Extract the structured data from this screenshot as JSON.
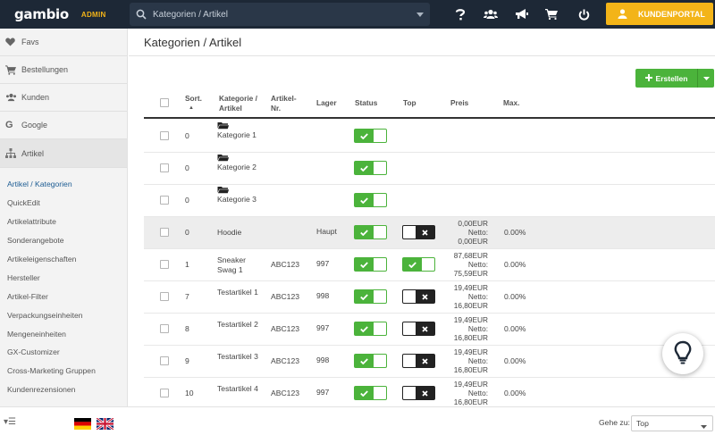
{
  "header": {
    "logo_name": "gambio",
    "logo_badge": "ADMIN",
    "search_value": "Kategorien / Artikel",
    "portal_label": "KUNDENPORTAL",
    "icons": [
      "help-icon",
      "users-icon",
      "megaphone-icon",
      "cart-icon",
      "power-icon"
    ]
  },
  "sidebar": {
    "main_items": [
      {
        "label": "Favs",
        "icon": "heart-icon"
      },
      {
        "label": "Bestellungen",
        "icon": "cart-icon"
      },
      {
        "label": "Kunden",
        "icon": "users-icon"
      },
      {
        "label": "Google",
        "icon": "google-icon"
      },
      {
        "label": "Artikel",
        "icon": "sitemap-icon"
      }
    ],
    "sub_items": [
      "Artikel / Kategorien",
      "QuickEdit",
      "Artikelattribute",
      "Sonderangebote",
      "Artikeleigenschaften",
      "Hersteller",
      "Artikel-Filter",
      "Verpackungseinheiten",
      "Mengeneinheiten",
      "GX-Customizer",
      "Cross-Marketing Gruppen",
      "Kundenrezensionen"
    ]
  },
  "main": {
    "title": "Kategorien / Artikel",
    "create_label": "Erstellen"
  },
  "table": {
    "headers": {
      "sort": "Sort.",
      "sort_arrow": "▲",
      "category": "Kategorie / Artikel",
      "artnr": "Artikel- Nr.",
      "stock": "Lager",
      "status": "Status",
      "top": "Top",
      "price": "Preis",
      "max": "Max."
    },
    "rows": [
      {
        "sort": "0",
        "name": "Kategorie 1",
        "folder": true,
        "artnr": "",
        "stock": "",
        "status": "on",
        "top": "",
        "price": "",
        "netto_label": "",
        "netto": "",
        "max": "",
        "highlight": false
      },
      {
        "sort": "0",
        "name": "Kategorie 2",
        "folder": true,
        "artnr": "",
        "stock": "",
        "status": "on",
        "top": "",
        "price": "",
        "netto_label": "",
        "netto": "",
        "max": "",
        "highlight": false
      },
      {
        "sort": "0",
        "name": "Kategorie 3",
        "folder": true,
        "artnr": "",
        "stock": "",
        "status": "on",
        "top": "",
        "price": "",
        "netto_label": "",
        "netto": "",
        "max": "",
        "highlight": false
      },
      {
        "sort": "0",
        "name": "Hoodie",
        "folder": false,
        "artnr": "",
        "stock": "Haupt",
        "status": "on",
        "top": "off",
        "price": "0,00EUR",
        "netto_label": "Netto:",
        "netto": "0,00EUR",
        "max": "0.00%",
        "highlight": true
      },
      {
        "sort": "1",
        "name": "Sneaker Swag 1",
        "folder": false,
        "artnr": "ABC123",
        "stock": "997",
        "status": "on",
        "top": "on",
        "price": "87,68EUR",
        "netto_label": "Netto:",
        "netto": "75,59EUR",
        "max": "0.00%",
        "highlight": false
      },
      {
        "sort": "7",
        "name": "Testartikel 1",
        "folder": false,
        "artnr": "ABC123",
        "stock": "998",
        "status": "on",
        "top": "off",
        "price": "19,49EUR",
        "netto_label": "Netto:",
        "netto": "16,80EUR",
        "max": "0.00%",
        "highlight": false
      },
      {
        "sort": "8",
        "name": "Testartikel 2",
        "folder": false,
        "artnr": "ABC123",
        "stock": "997",
        "status": "on",
        "top": "off",
        "price": "19,49EUR",
        "netto_label": "Netto:",
        "netto": "16,80EUR",
        "max": "0.00%",
        "highlight": false
      },
      {
        "sort": "9",
        "name": "Testartikel 3",
        "folder": false,
        "artnr": "ABC123",
        "stock": "998",
        "status": "on",
        "top": "off",
        "price": "19,49EUR",
        "netto_label": "Netto:",
        "netto": "16,80EUR",
        "max": "0.00%",
        "highlight": false
      },
      {
        "sort": "10",
        "name": "Testartikel 4",
        "folder": false,
        "artnr": "ABC123",
        "stock": "997",
        "status": "on",
        "top": "off",
        "price": "19,49EUR",
        "netto_label": "Netto:",
        "netto": "16,80EUR",
        "max": "0.00%",
        "highlight": false
      }
    ]
  },
  "footer": {
    "menu_toggle": "▾☰",
    "goto_label": "Gehe zu:",
    "goto_value": "Top",
    "flags": [
      "german-flag-icon",
      "uk-flag-icon"
    ]
  },
  "colors": {
    "topbar": "#1d2836",
    "accent_yellow": "#f3b418",
    "green": "#4bb33b",
    "link_blue": "#1d5c93"
  }
}
